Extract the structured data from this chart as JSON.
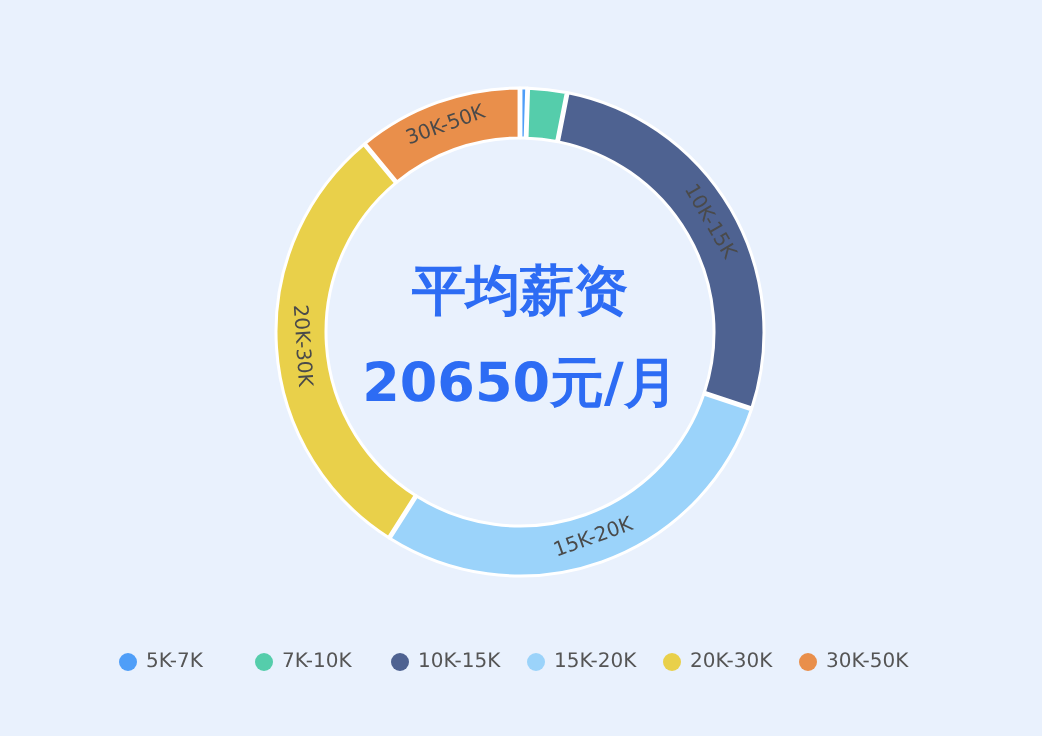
{
  "chart_data": {
    "type": "donut",
    "title": "平均薪资",
    "subtitle": "20650元/月",
    "categories": [
      "5K-7K",
      "7K-10K",
      "10K-15K",
      "15K-20K",
      "20K-30K",
      "30K-50K"
    ],
    "values": [
      0.5,
      2.6,
      27,
      28.9,
      30,
      11
    ],
    "colors": [
      "#4f9ef8",
      "#55cdab",
      "#4e6291",
      "#9bd3fa",
      "#e9d04a",
      "#e98f4b"
    ],
    "legend": "bottom"
  }
}
